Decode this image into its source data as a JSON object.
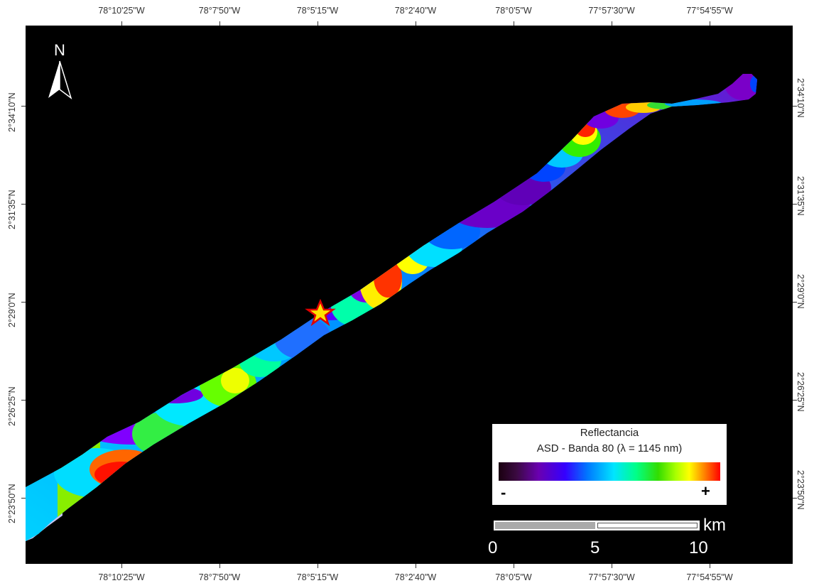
{
  "map": {
    "background": "#000000",
    "top_ticks": [
      "78°10'25\"W",
      "78°7'50\"W",
      "78°5'15\"W",
      "78°2'40\"W",
      "78°0'5\"W",
      "77°57'30\"W",
      "77°54'55\"W"
    ],
    "bottom_ticks": [
      "78°10'25\"W",
      "78°7'50\"W",
      "78°5'15\"W",
      "78°2'40\"W",
      "78°0'5\"W",
      "77°57'30\"W",
      "77°54'55\"W"
    ],
    "left_ticks": [
      "2°34'10\"N",
      "2°31'35\"N",
      "2°29'0\"N",
      "2°26'25\"N",
      "2°23'50\"N"
    ],
    "right_ticks": [
      "2°34'10\"N",
      "2°31'35\"N",
      "2°29'0\"N",
      "2°26'25\"N",
      "2°23'50\"N"
    ],
    "north_arrow": {
      "label": "N",
      "icon": "north-arrow-icon"
    },
    "marker": {
      "icon": "star-icon",
      "fill": "#ffe000",
      "stroke": "#e00000"
    }
  },
  "legend": {
    "title": "Reflectancia",
    "subtitle": "ASD - Banda 80 (λ = 1145 nm)",
    "min_label": "-",
    "max_label": "+",
    "colors": [
      "#1a0010",
      "#6a00b0",
      "#3500ff",
      "#0077ff",
      "#00e5ff",
      "#00ff88",
      "#33dd00",
      "#ffff00",
      "#ff8000",
      "#ff0000"
    ]
  },
  "scale_bar": {
    "unit": "km",
    "labels": [
      "0",
      "5",
      "10"
    ]
  }
}
